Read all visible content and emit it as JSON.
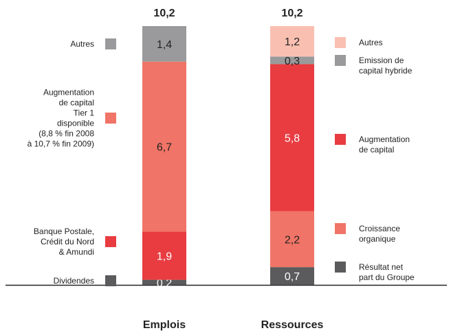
{
  "chart_data": {
    "type": "stacked_bar",
    "bars": [
      {
        "name": "Emplois",
        "total": 10.2,
        "total_label": "10,2",
        "segments": [
          {
            "name": "Dividendes",
            "color": "#5b5b5d",
            "text_color": "#ffffff",
            "value": 0.2,
            "value_label": "0,2"
          },
          {
            "name": "Banque Postale,\nCrédit du Nord\n& Amundi",
            "color": "#e83c41",
            "text_color": "#ffffff",
            "value": 1.9,
            "value_label": "1,9"
          },
          {
            "name": "Augmentation\nde capital\nTier 1\ndisponible\n(8,8 % fin 2008\nà 10,7 % fin 2009)",
            "color": "#f07467",
            "text_color": "#222222",
            "value": 6.7,
            "value_label": "6,7"
          },
          {
            "name": "Autres",
            "color": "#9a9a9c",
            "text_color": "#222222",
            "value": 1.4,
            "value_label": "1,4"
          }
        ]
      },
      {
        "name": "Ressources",
        "total": 10.2,
        "total_label": "10,2",
        "segments": [
          {
            "name": "Résultat net\npart du Groupe",
            "color": "#5b5b5d",
            "text_color": "#ffffff",
            "value": 0.7,
            "value_label": "0,7"
          },
          {
            "name": "Croissance\norganique",
            "color": "#f07467",
            "text_color": "#222222",
            "value": 2.2,
            "value_label": "2,2"
          },
          {
            "name": "Augmentation\nde capital",
            "color": "#e83c41",
            "text_color": "#ffffff",
            "value": 5.8,
            "value_label": "5,8"
          },
          {
            "name": "Emission de\ncapital hybride",
            "color": "#9a9a9c",
            "text_color": "#222222",
            "value": 0.3,
            "value_label": "0,3"
          },
          {
            "name": "Autres",
            "color": "#f9c0b1",
            "text_color": "#222222",
            "value": 1.2,
            "value_label": "1,2"
          }
        ]
      }
    ]
  }
}
